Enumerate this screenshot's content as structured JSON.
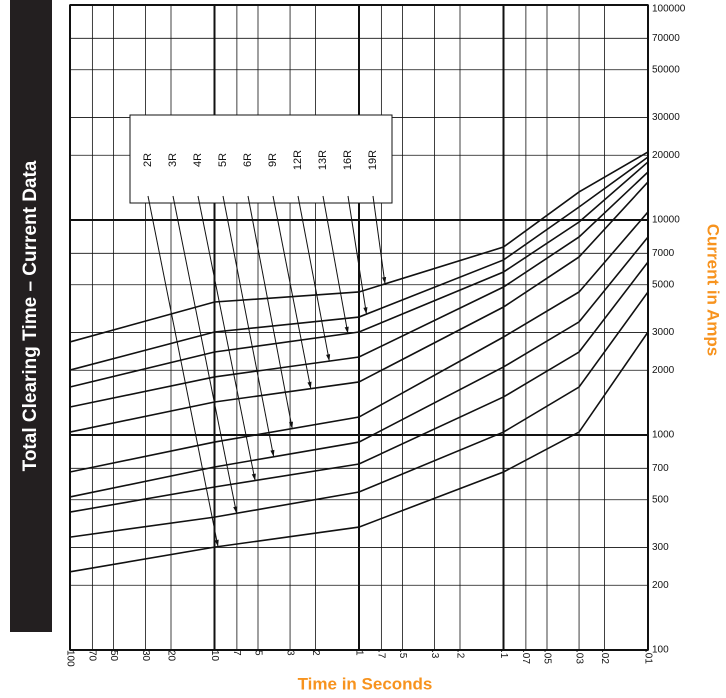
{
  "chart_data": {
    "type": "line",
    "title": "Total Clearing Time – Current Data",
    "x_label": "Time in Seconds",
    "y_label": "Current in Amps",
    "x": [
      100,
      10,
      1,
      0.1,
      0.03,
      0.01
    ],
    "series": [
      {
        "name": "2R",
        "color": "#111111",
        "values": [
          231,
          301,
          373,
          673,
          1032,
          3013
        ]
      },
      {
        "name": "3R",
        "color": "#111111",
        "values": [
          335,
          415,
          543,
          1032,
          1672,
          4627
        ]
      },
      {
        "name": "4R",
        "color": "#111111",
        "values": [
          438,
          573,
          733,
          1503,
          2432,
          6380
        ]
      },
      {
        "name": "5R",
        "color": "#111111",
        "values": [
          515,
          710,
          927,
          2072,
          3357,
          8339
        ]
      },
      {
        "name": "6R",
        "color": "#111111",
        "values": [
          673,
          927,
          1212,
          2856,
          4627,
          10900
        ]
      },
      {
        "name": "9R",
        "color": "#111111",
        "values": [
          1032,
          1424,
          1765,
          3938,
          6730,
          15030
        ]
      },
      {
        "name": "12R",
        "color": "#111111",
        "values": [
          1350,
          1862,
          2306,
          4878,
          8339,
          16720
        ]
      },
      {
        "name": "13R",
        "color": "#111111",
        "values": [
          1672,
          2432,
          3013,
          5728,
          9790,
          18620
        ]
      },
      {
        "name": "16R",
        "color": "#111111",
        "values": [
          2005,
          3013,
          3537,
          6520,
          11490,
          19630
        ]
      },
      {
        "name": "19R",
        "color": "#111111",
        "values": [
          2709,
          4155,
          4627,
          7487,
          13500,
          20720
        ]
      }
    ],
    "xlim": [
      100,
      0.01
    ],
    "ylim": [
      100,
      100000
    ],
    "xscale": "log",
    "yscale": "log",
    "grid": true,
    "xticks": [
      100,
      70,
      50,
      30,
      20,
      10,
      7,
      5,
      3,
      2,
      1,
      {
        "value": 0.7,
        "label": ".7"
      },
      {
        "value": 0.5,
        "label": ".5"
      },
      {
        "value": 0.3,
        "label": ".3"
      },
      {
        "value": 0.2,
        "label": ".2"
      },
      {
        "value": 0.1,
        "label": ".1"
      },
      {
        "value": 0.07,
        "label": ".07"
      },
      {
        "value": 0.05,
        "label": ".05"
      },
      {
        "value": 0.03,
        "label": ".03"
      },
      {
        "value": 0.02,
        "label": ".02"
      },
      {
        "value": 0.01,
        "label": ".01"
      }
    ],
    "yticks": [
      100,
      200,
      300,
      500,
      700,
      1000,
      2000,
      3000,
      5000,
      7000,
      10000,
      20000,
      30000,
      50000,
      70000,
      100000
    ]
  }
}
